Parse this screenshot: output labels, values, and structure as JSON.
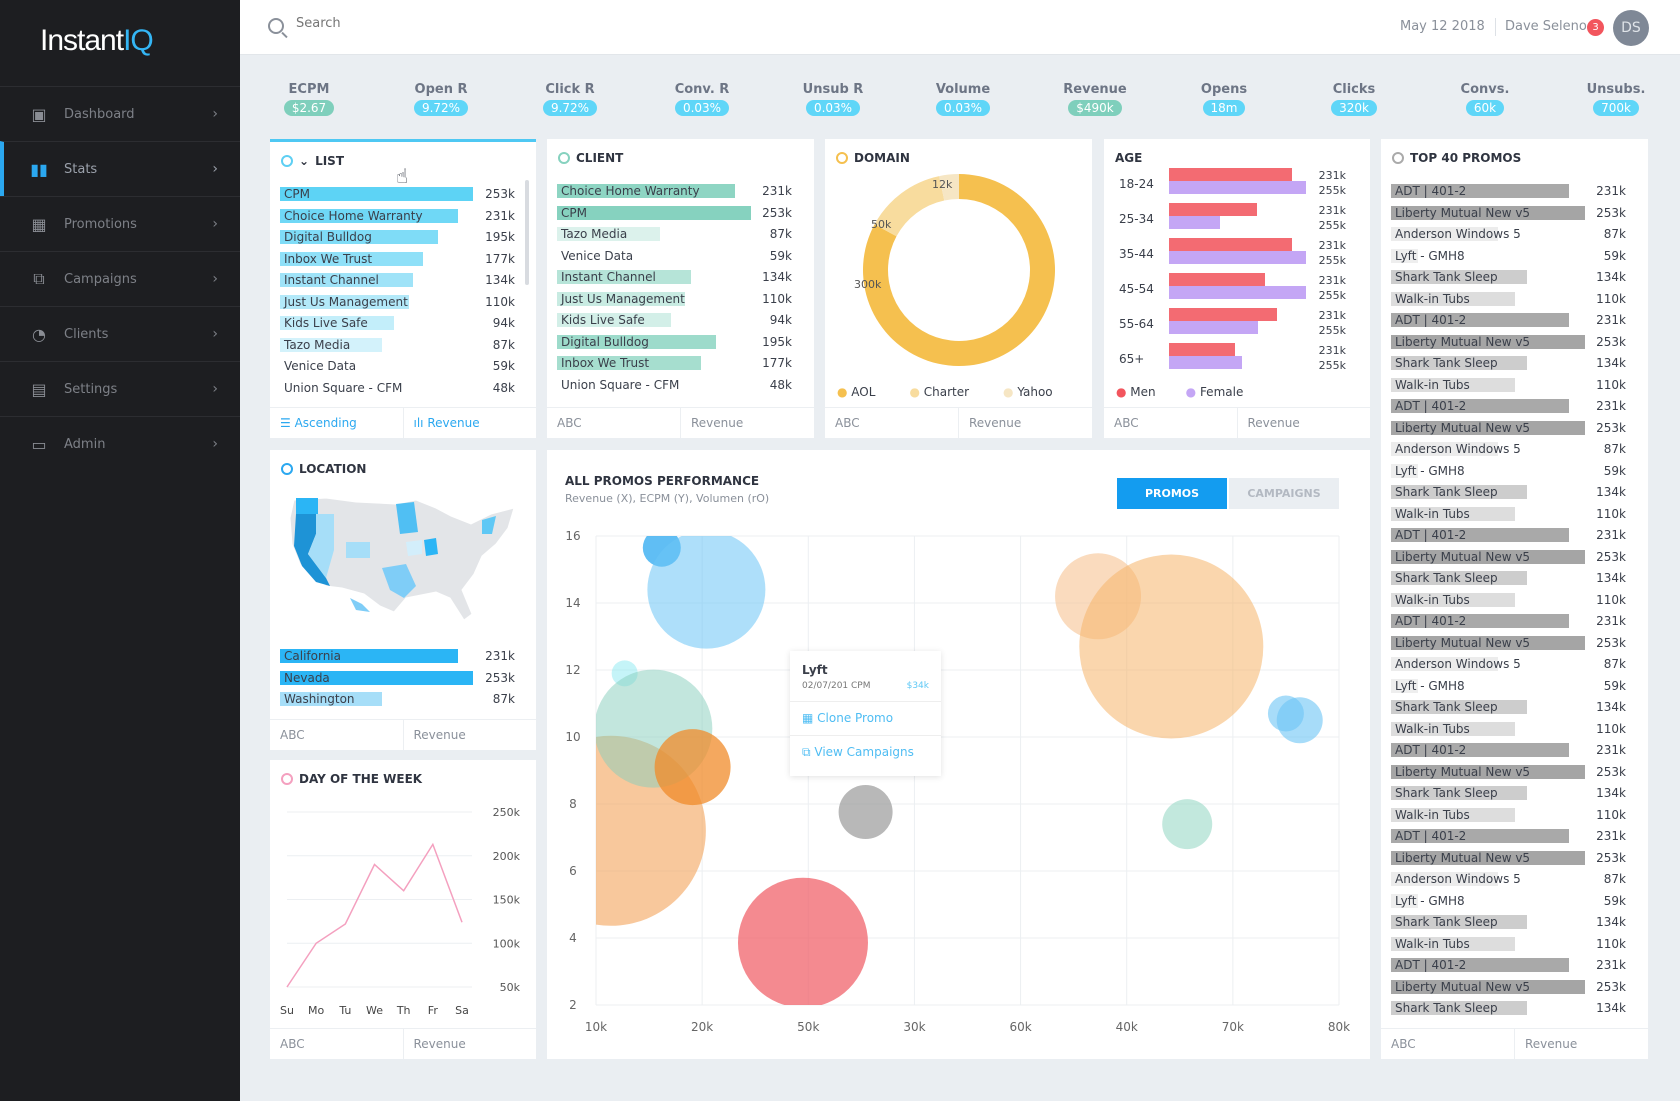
{
  "app": {
    "logo": "InstantIQ"
  },
  "sidebar": {
    "items": [
      {
        "label": "Dashboard",
        "icon": "dashboard-icon",
        "glyph": "▣"
      },
      {
        "label": "Stats",
        "icon": "stats-icon",
        "glyph": "▮▮",
        "active": true
      },
      {
        "label": "Promotions",
        "icon": "calendar-icon",
        "glyph": "▦"
      },
      {
        "label": "Campaigns",
        "icon": "campaigns-icon",
        "glyph": "⧉"
      },
      {
        "label": "Clients",
        "icon": "pie-icon",
        "glyph": "◔"
      },
      {
        "label": "Settings",
        "icon": "settings-icon",
        "glyph": "▤"
      },
      {
        "label": "Admin",
        "icon": "chat-icon",
        "glyph": "▭"
      }
    ]
  },
  "header": {
    "search_placeholder": "Search",
    "date": "May 12 2018",
    "user": "Dave Seleno",
    "notifications": "3",
    "avatar": "DS"
  },
  "kpis": [
    {
      "label": "ECPM",
      "value": "$2.67",
      "green": true
    },
    {
      "label": "Open R",
      "value": "9.72%"
    },
    {
      "label": "Click R",
      "value": "9.72%"
    },
    {
      "label": "Conv. R",
      "value": "0.03%"
    },
    {
      "label": "Unsub R",
      "value": "0.03%"
    },
    {
      "label": "Volume",
      "value": "0.03%"
    },
    {
      "label": "Revenue",
      "value": "$490k",
      "green": true
    },
    {
      "label": "Opens",
      "value": "18m"
    },
    {
      "label": "Clicks",
      "value": "320k"
    },
    {
      "label": "Convs.",
      "value": "60k"
    },
    {
      "label": "Unsubs.",
      "value": "700k"
    }
  ],
  "list": {
    "title": "LIST",
    "foot_left": "Ascending",
    "foot_right": "Revenue",
    "rows": [
      {
        "name": "CPM",
        "value": "253k",
        "fill": 1.0,
        "color": "#5dd3f5"
      },
      {
        "name": "Choice Home Warranty",
        "value": "231k",
        "fill": 0.92,
        "color": "#6fd8f6"
      },
      {
        "name": "Digital Bulldog",
        "value": "195k",
        "fill": 0.82,
        "color": "#7fdcf7"
      },
      {
        "name": "Inbox We Trust",
        "value": "177k",
        "fill": 0.74,
        "color": "#8fe0f8"
      },
      {
        "name": "Instant Channel",
        "value": "134k",
        "fill": 0.69,
        "color": "#9fe3f8"
      },
      {
        "name": "Just Us Management",
        "value": "110k",
        "fill": 0.67,
        "color": "#b3e9f9"
      },
      {
        "name": "Kids Live Safe",
        "value": "94k",
        "fill": 0.59,
        "color": "#c3eefa"
      },
      {
        "name": "Tazo Media",
        "value": "87k",
        "fill": 0.53,
        "color": "#d3f2fb"
      },
      {
        "name": "Venice Data",
        "value": "59k",
        "fill": 0,
        "color": "#e5f7fc"
      },
      {
        "name": "Union Square - CFM",
        "value": "48k",
        "fill": 0,
        "color": "#eef9fd"
      }
    ]
  },
  "client": {
    "title": "CLIENT",
    "foot_left": "ABC",
    "foot_right": "Revenue",
    "rows": [
      {
        "name": "Choice Home Warranty",
        "value": "231k",
        "fill": 0.92,
        "color": "#8ed5c3"
      },
      {
        "name": "CPM",
        "value": "253k",
        "fill": 1.0,
        "color": "#86d2bf"
      },
      {
        "name": "Tazo Media",
        "value": "87k",
        "fill": 0.53,
        "color": "#dcf2ec"
      },
      {
        "name": "Venice Data",
        "value": "59k",
        "fill": 0,
        "color": "#eef8f5"
      },
      {
        "name": "Instant Channel",
        "value": "134k",
        "fill": 0.69,
        "color": "#b6e4d8"
      },
      {
        "name": "Just Us Management",
        "value": "110k",
        "fill": 0.66,
        "color": "#c8ebe2"
      },
      {
        "name": "Kids Live Safe",
        "value": "94k",
        "fill": 0.59,
        "color": "#d3efe8"
      },
      {
        "name": "Digital Bulldog",
        "value": "195k",
        "fill": 0.82,
        "color": "#9ddbcb"
      },
      {
        "name": "Inbox We Trust",
        "value": "177k",
        "fill": 0.74,
        "color": "#a6decf"
      },
      {
        "name": "Union Square - CFM",
        "value": "48k",
        "fill": 0,
        "color": "#eef8f5"
      }
    ]
  },
  "domain": {
    "title": "DOMAIN",
    "foot_left": "ABC",
    "foot_right": "Revenue",
    "slices": [
      {
        "name": "AOL",
        "value": 300,
        "label": "300k",
        "color": "#f5c04f"
      },
      {
        "name": "Charter",
        "value": 50,
        "label": "50k",
        "color": "#f8dc9e"
      },
      {
        "name": "Yahoo",
        "value": 12,
        "label": "12k",
        "color": "#f6e6c4"
      }
    ]
  },
  "age": {
    "title": "AGE",
    "foot_left": "ABC",
    "foot_right": "Revenue",
    "legend_men": "Men",
    "legend_female": "Female",
    "men_color": "#f36b72",
    "female_color": "#c4a6f5",
    "groups": [
      {
        "label": "18-24",
        "men": 0.9,
        "female": 1.0,
        "men_value": "231k",
        "female_value": "255k"
      },
      {
        "label": "25-34",
        "men": 0.64,
        "female": 0.37,
        "men_value": "231k",
        "female_value": "255k"
      },
      {
        "label": "35-44",
        "men": 0.9,
        "female": 1.0,
        "men_value": "231k",
        "female_value": "255k"
      },
      {
        "label": "45-54",
        "men": 0.7,
        "female": 1.0,
        "men_value": "231k",
        "female_value": "255k"
      },
      {
        "label": "55-64",
        "men": 0.79,
        "female": 0.65,
        "men_value": "231k",
        "female_value": "255k"
      },
      {
        "label": "65+",
        "men": 0.48,
        "female": 0.53,
        "men_value": "231k",
        "female_value": "255k"
      }
    ]
  },
  "top40": {
    "title": "TOP 40 PROMOS",
    "foot_left": "ABC",
    "foot_right": "Revenue",
    "rows": []
  },
  "location": {
    "title": "LOCATION",
    "foot_left": "ABC",
    "foot_right": "Revenue",
    "rows": [
      {
        "name": "California",
        "value": "231k",
        "fill": 0.92,
        "color": "#2bb5f5"
      },
      {
        "name": "Nevada",
        "value": "253k",
        "fill": 1.0,
        "color": "#2bb5f5"
      },
      {
        "name": "Washington",
        "value": "87k",
        "fill": 0.53,
        "color": "#a6def8"
      }
    ]
  },
  "dow": {
    "title": "DAY OF THE WEEK",
    "foot_left": "ABC",
    "foot_right": "Revenue"
  },
  "performance": {
    "title": "ALL PROMOS PERFORMANCE",
    "subtitle": "Revenue (X), ECPM (Y), Volumen (rO)",
    "tab_promos": "PROMOS",
    "tab_campaigns": "CAMPAIGNS",
    "tooltip": {
      "name": "Lyft",
      "meta": "02/07/201 CPM",
      "amount": "$34k",
      "action1": "Clone Promo",
      "action2": "View Campaigns"
    }
  },
  "chart_data": [
    {
      "type": "line",
      "title": "DAY OF THE WEEK",
      "categories": [
        "Su",
        "Mo",
        "Tu",
        "We",
        "Th",
        "Fr",
        "Sa"
      ],
      "values": [
        50,
        100,
        122,
        190,
        160,
        213,
        124
      ],
      "y_ticks": [
        "250k",
        "200k",
        "150k",
        "100k",
        "50k"
      ],
      "ylim": [
        50,
        250
      ]
    },
    {
      "type": "scatter",
      "title": "ALL PROMOS PERFORMANCE",
      "xlabel": "Revenue",
      "ylabel": "ECPM",
      "x_ticks": [
        "10k",
        "20k",
        "50k",
        "30k",
        "60k",
        "40k",
        "70k",
        "80k"
      ],
      "y_ticks": [
        16,
        14,
        12,
        10,
        8,
        6,
        4,
        2
      ],
      "ylim": [
        2,
        16
      ],
      "points": [
        {
          "xi": 0.62,
          "y": 15.65,
          "r": 19,
          "color": "#2ba8f0",
          "o": 0.75
        },
        {
          "xi": 1.04,
          "y": 14.4,
          "r": 59,
          "color": "#6cc4f5",
          "o": 0.55
        },
        {
          "xi": 0.27,
          "y": 11.9,
          "r": 13,
          "color": "#7fe6f0",
          "o": 0.45
        },
        {
          "xi": 0.14,
          "y": 7.2,
          "r": 95,
          "color": "#f3a45a",
          "o": 0.6
        },
        {
          "xi": 0.54,
          "y": 10.25,
          "r": 59,
          "color": "#86cdbb",
          "o": 0.5
        },
        {
          "xi": 0.91,
          "y": 9.1,
          "r": 38,
          "color": "#f08b2a",
          "o": 0.75
        },
        {
          "xi": 2.54,
          "y": 7.76,
          "r": 27,
          "color": "#9a9a9a",
          "o": 0.7
        },
        {
          "xi": 1.95,
          "y": 3.86,
          "r": 65,
          "color": "#f0636b",
          "o": 0.75
        },
        {
          "xi": 4.73,
          "y": 14.2,
          "r": 43,
          "color": "#f6c393",
          "o": 0.6
        },
        {
          "xi": 5.42,
          "y": 12.7,
          "r": 92,
          "color": "#f5b56a",
          "o": 0.55
        },
        {
          "xi": 6.5,
          "y": 10.7,
          "r": 18,
          "color": "#6cc4f5",
          "o": 0.6
        },
        {
          "xi": 6.63,
          "y": 10.5,
          "r": 23,
          "color": "#6cc4f5",
          "o": 0.6
        },
        {
          "xi": 5.57,
          "y": 7.4,
          "r": 25,
          "color": "#9ad8c7",
          "o": 0.6
        }
      ]
    }
  ]
}
